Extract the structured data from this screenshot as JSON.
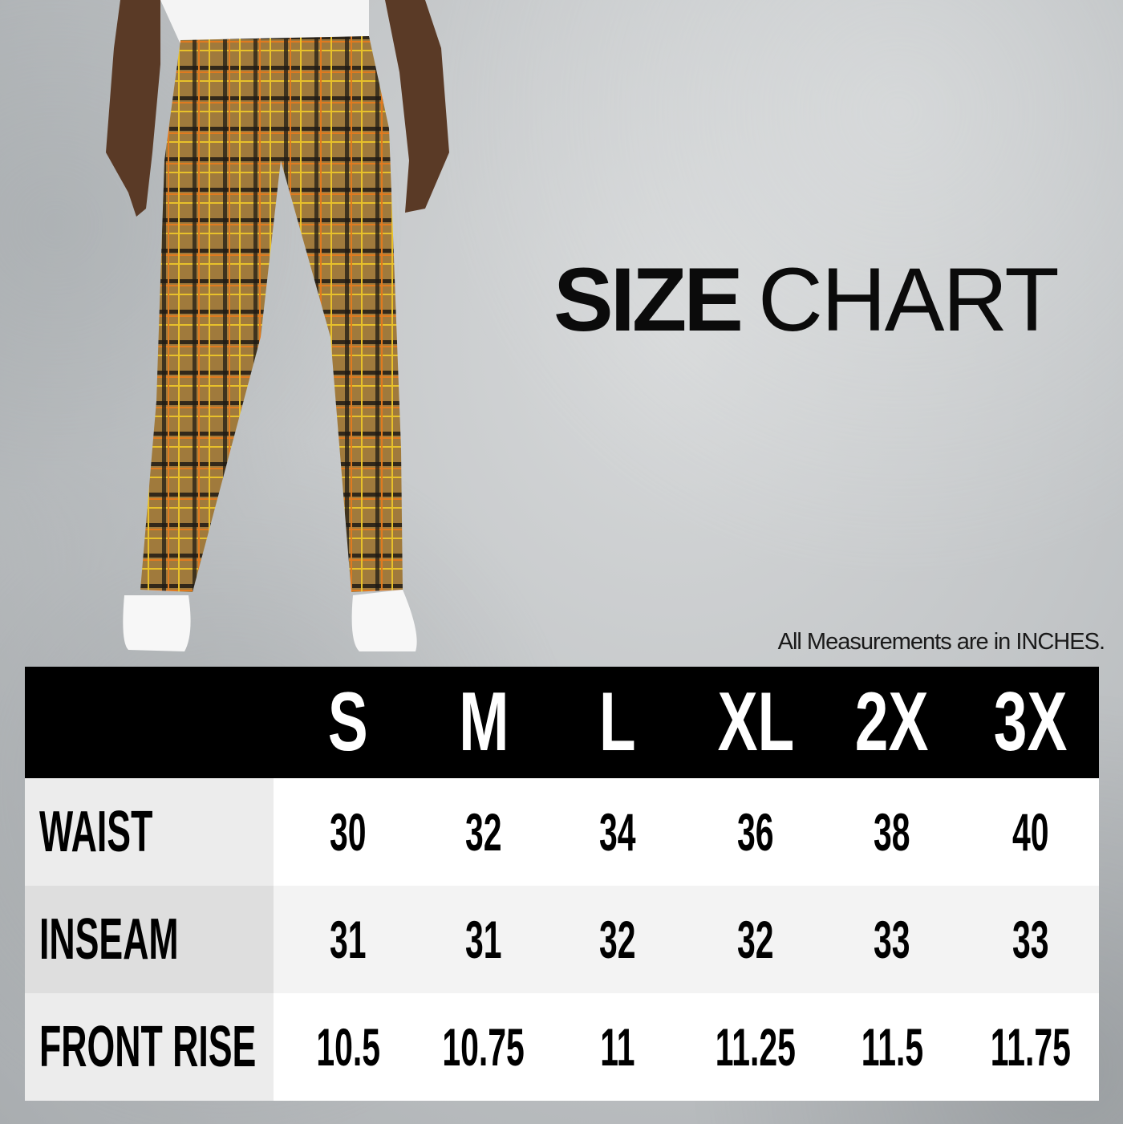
{
  "title": {
    "bold": "SIZE",
    "regular": "CHART"
  },
  "note": "All Measurements are in INCHES.",
  "sizes": [
    "S",
    "M",
    "L",
    "XL",
    "2X",
    "3X"
  ],
  "rows": [
    {
      "label": "WAIST",
      "values": [
        "30",
        "32",
        "34",
        "36",
        "38",
        "40"
      ]
    },
    {
      "label": "INSEAM",
      "values": [
        "31",
        "31",
        "32",
        "32",
        "33",
        "33"
      ]
    },
    {
      "label": "FRONT RISE",
      "values": [
        "10.5",
        "10.75",
        "11",
        "11.25",
        "11.5",
        "11.75"
      ]
    }
  ],
  "colors": {
    "header_bg": "#000000",
    "pants_base": "#a07a3c",
    "plaid_orange": "#e07a1f",
    "plaid_yellow": "#e8c12a",
    "plaid_dark": "#1e1a14"
  }
}
